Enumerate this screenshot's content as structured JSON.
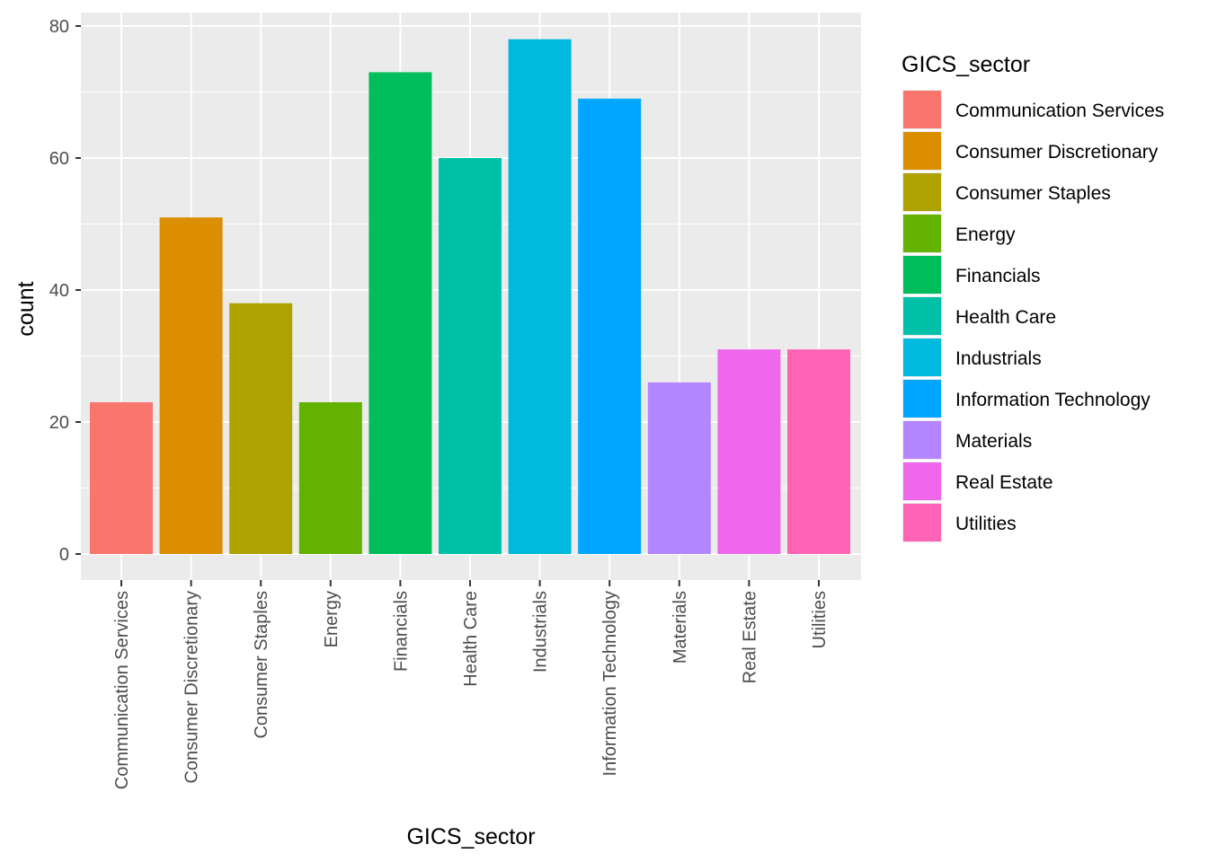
{
  "chart_data": {
    "type": "bar",
    "xlabel": "GICS_sector",
    "ylabel": "count",
    "ylim": [
      -4,
      80
    ],
    "yticks": [
      0,
      20,
      40,
      60,
      80
    ],
    "grid": true,
    "legend_position": "right",
    "legend_title": "GICS_sector",
    "categories": [
      "Communication Services",
      "Consumer Discretionary",
      "Consumer Staples",
      "Energy",
      "Financials",
      "Health Care",
      "Industrials",
      "Information Technology",
      "Materials",
      "Real Estate",
      "Utilities"
    ],
    "values": [
      23,
      51,
      38,
      23,
      73,
      60,
      78,
      69,
      26,
      31,
      31
    ],
    "colors": [
      "#F8766D",
      "#DB8E00",
      "#AEA200",
      "#64B200",
      "#00BD5C",
      "#00C1A7",
      "#00BADE",
      "#00A6FF",
      "#B385FF",
      "#EF67EB",
      "#FF63B6"
    ]
  },
  "style": {
    "panel_background": "#EBEBEB",
    "grid_color": "#FFFFFF"
  }
}
